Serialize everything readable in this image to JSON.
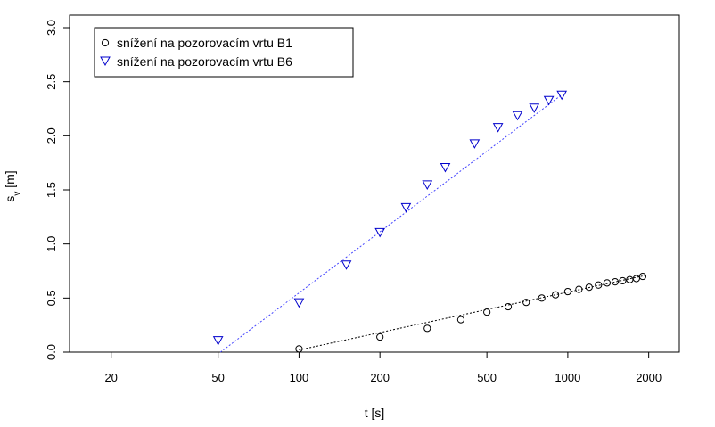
{
  "chart_data": {
    "type": "scatter",
    "xlabel": "t [s]",
    "ylabel": "s_v [m]",
    "x_scale": "log",
    "xlim": [
      14,
      2600
    ],
    "ylim": [
      0,
      3.0
    ],
    "x_ticks": [
      20,
      50,
      100,
      200,
      500,
      1000,
      2000
    ],
    "y_ticks": [
      0.0,
      0.5,
      1.0,
      1.5,
      2.0,
      2.5,
      3.0
    ],
    "x_tick_labels": [
      "20",
      "50",
      "100",
      "200",
      "500",
      "1000",
      "2000"
    ],
    "y_tick_labels": [
      "0.0",
      "0.5",
      "1.0",
      "1.5",
      "2.0",
      "2.5",
      "3.0"
    ],
    "legend": {
      "position": "top-left"
    },
    "series": [
      {
        "name": "snížení na pozorovacím vrtu B1",
        "marker": "circle",
        "color": "#000000",
        "points": [
          [
            100,
            0.03
          ],
          [
            200,
            0.14
          ],
          [
            300,
            0.22
          ],
          [
            400,
            0.3
          ],
          [
            500,
            0.37
          ],
          [
            600,
            0.42
          ],
          [
            700,
            0.46
          ],
          [
            800,
            0.5
          ],
          [
            900,
            0.53
          ],
          [
            1000,
            0.56
          ],
          [
            1100,
            0.58
          ],
          [
            1200,
            0.6
          ],
          [
            1300,
            0.62
          ],
          [
            1400,
            0.64
          ],
          [
            1500,
            0.65
          ],
          [
            1600,
            0.66
          ],
          [
            1700,
            0.67
          ],
          [
            1800,
            0.68
          ],
          [
            1900,
            0.7
          ]
        ],
        "fit_line": {
          "x": [
            100,
            1950
          ],
          "y": [
            0.02,
            0.71
          ],
          "color": "#000000",
          "style": "dotted"
        }
      },
      {
        "name": "snížení na pozorovacím vrtu B6",
        "marker": "triangle-down",
        "color": "#0000cc",
        "points": [
          [
            50,
            0.11
          ],
          [
            100,
            0.46
          ],
          [
            150,
            0.81
          ],
          [
            200,
            1.11
          ],
          [
            250,
            1.34
          ],
          [
            300,
            1.55
          ],
          [
            350,
            1.71
          ],
          [
            450,
            1.93
          ],
          [
            550,
            2.08
          ],
          [
            650,
            2.19
          ],
          [
            750,
            2.26
          ],
          [
            850,
            2.33
          ],
          [
            950,
            2.38
          ]
        ],
        "fit_line": {
          "x": [
            51,
            950
          ],
          "y": [
            0.0,
            2.38
          ],
          "color": "#4444ff",
          "style": "dotted"
        }
      }
    ]
  }
}
